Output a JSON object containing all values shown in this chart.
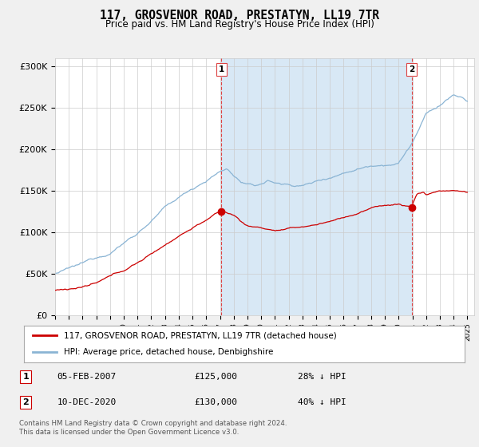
{
  "title": "117, GROSVENOR ROAD, PRESTATYN, LL19 7TR",
  "subtitle": "Price paid vs. HM Land Registry's House Price Index (HPI)",
  "ylim": [
    0,
    310000
  ],
  "yticks": [
    0,
    50000,
    100000,
    150000,
    200000,
    250000,
    300000
  ],
  "ytick_labels": [
    "£0",
    "£50K",
    "£100K",
    "£150K",
    "£200K",
    "£250K",
    "£300K"
  ],
  "sale1_x": 2007.09,
  "sale1_price": 125000,
  "sale2_x": 2020.94,
  "sale2_price": 130000,
  "hpi_color": "#8ab4d4",
  "price_color": "#cc0000",
  "dashed_color": "#dd4444",
  "shade_color": "#d8e8f5",
  "background_color": "#f0f0f0",
  "plot_bg_color": "#ffffff",
  "grid_color": "#cccccc",
  "legend_label_red": "117, GROSVENOR ROAD, PRESTATYN, LL19 7TR (detached house)",
  "legend_label_blue": "HPI: Average price, detached house, Denbighshire",
  "table_row1": [
    "1",
    "05-FEB-2007",
    "£125,000",
    "28% ↓ HPI"
  ],
  "table_row2": [
    "2",
    "10-DEC-2020",
    "£130,000",
    "40% ↓ HPI"
  ],
  "footer": "Contains HM Land Registry data © Crown copyright and database right 2024.\nThis data is licensed under the Open Government Licence v3.0."
}
